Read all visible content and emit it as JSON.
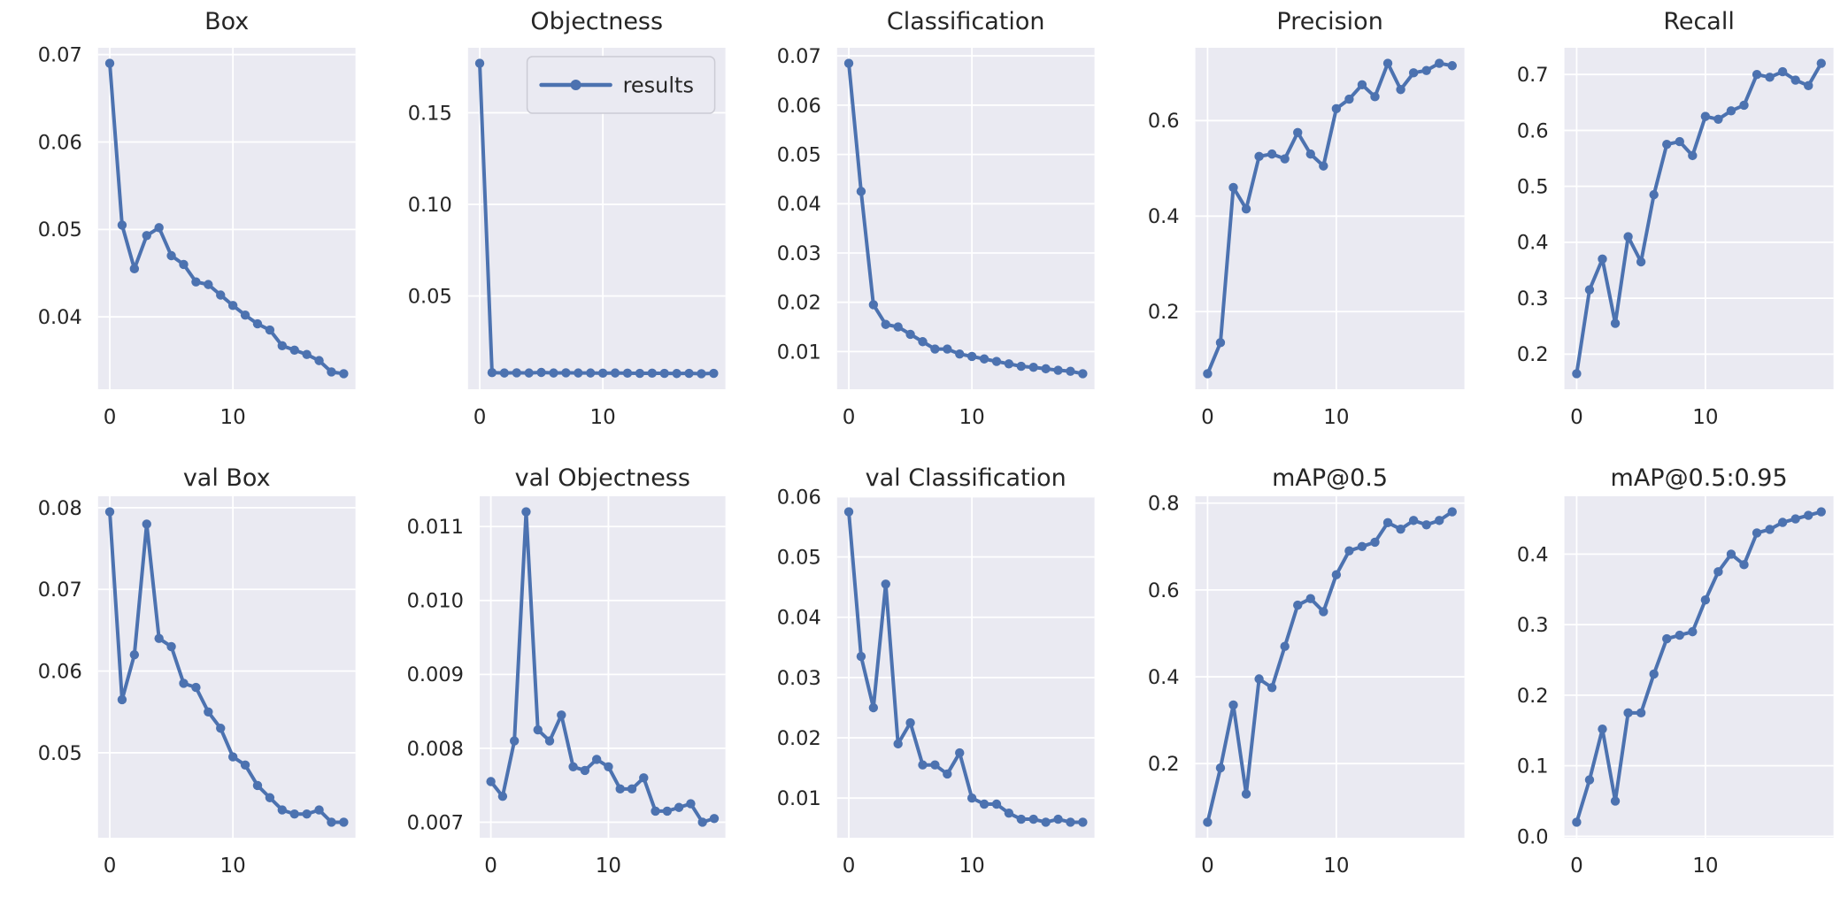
{
  "style": {
    "line_color": "#4C72B0",
    "axes_background": "#EAEAF2",
    "grid_color": "#FFFFFF",
    "text_color": "#262626",
    "legend_border": "#CBCBD4",
    "figure_background": "#FFFFFF"
  },
  "axis": {
    "xlim": [
      -0.95,
      19.95
    ],
    "grid": true,
    "y_pad_frac": 0.05,
    "marker": "dot-line"
  },
  "chart_data": [
    {
      "key": "box",
      "title": "Box",
      "type": "line",
      "x": [
        0,
        1,
        2,
        3,
        4,
        5,
        6,
        7,
        8,
        9,
        10,
        11,
        12,
        13,
        14,
        15,
        16,
        17,
        18,
        19
      ],
      "values": [
        0.069,
        0.0505,
        0.0455,
        0.0493,
        0.0502,
        0.047,
        0.046,
        0.044,
        0.0437,
        0.0425,
        0.0413,
        0.0402,
        0.0392,
        0.0385,
        0.0367,
        0.0362,
        0.0357,
        0.035,
        0.0337,
        0.0335
      ],
      "yticks": [
        0.04,
        0.05,
        0.06,
        0.07
      ],
      "ytick_labels": [
        "0.04",
        "0.05",
        "0.06",
        "0.07"
      ],
      "xticks": [
        0,
        10
      ],
      "xtick_labels": [
        "0",
        "10"
      ],
      "legend": null,
      "legend_loc": null
    },
    {
      "key": "objectness",
      "title": "Objectness",
      "type": "line",
      "x": [
        0,
        1,
        2,
        3,
        4,
        5,
        6,
        7,
        8,
        9,
        10,
        11,
        12,
        13,
        14,
        15,
        16,
        17,
        18,
        19
      ],
      "values": [
        0.177,
        0.0082,
        0.008,
        0.0081,
        0.008,
        0.0083,
        0.008,
        0.0081,
        0.008,
        0.008,
        0.0079,
        0.008,
        0.0079,
        0.0078,
        0.0079,
        0.0078,
        0.0077,
        0.0078,
        0.0076,
        0.0078
      ],
      "yticks": [
        0.05,
        0.1,
        0.15
      ],
      "ytick_labels": [
        "0.05",
        "0.10",
        "0.15"
      ],
      "xticks": [
        0,
        10
      ],
      "xtick_labels": [
        "0",
        "10"
      ],
      "legend": "results",
      "legend_loc": "upper right"
    },
    {
      "key": "classification",
      "title": "Classification",
      "type": "line",
      "x": [
        0,
        1,
        2,
        3,
        4,
        5,
        6,
        7,
        8,
        9,
        10,
        11,
        12,
        13,
        14,
        15,
        16,
        17,
        18,
        19
      ],
      "values": [
        0.0685,
        0.0425,
        0.0195,
        0.0155,
        0.015,
        0.0135,
        0.012,
        0.0105,
        0.0105,
        0.0095,
        0.009,
        0.0085,
        0.008,
        0.0075,
        0.007,
        0.0068,
        0.0065,
        0.0062,
        0.006,
        0.0055
      ],
      "yticks": [
        0.01,
        0.02,
        0.03,
        0.04,
        0.05,
        0.06,
        0.07
      ],
      "ytick_labels": [
        "0.01",
        "0.02",
        "0.03",
        "0.04",
        "0.05",
        "0.06",
        "0.07"
      ],
      "xticks": [
        0,
        10
      ],
      "xtick_labels": [
        "0",
        "10"
      ],
      "legend": null,
      "legend_loc": null
    },
    {
      "key": "precision",
      "title": "Precision",
      "type": "line",
      "x": [
        0,
        1,
        2,
        3,
        4,
        5,
        6,
        7,
        8,
        9,
        10,
        11,
        12,
        13,
        14,
        15,
        16,
        17,
        18,
        19
      ],
      "values": [
        0.07,
        0.135,
        0.46,
        0.415,
        0.525,
        0.53,
        0.52,
        0.575,
        0.53,
        0.505,
        0.625,
        0.645,
        0.675,
        0.65,
        0.72,
        0.665,
        0.7,
        0.705,
        0.72,
        0.715
      ],
      "yticks": [
        0.2,
        0.4,
        0.6
      ],
      "ytick_labels": [
        "0.2",
        "0.4",
        "0.6"
      ],
      "xticks": [
        0,
        10
      ],
      "xtick_labels": [
        "0",
        "10"
      ],
      "legend": null,
      "legend_loc": null
    },
    {
      "key": "recall",
      "title": "Recall",
      "type": "line",
      "x": [
        0,
        1,
        2,
        3,
        4,
        5,
        6,
        7,
        8,
        9,
        10,
        11,
        12,
        13,
        14,
        15,
        16,
        17,
        18,
        19
      ],
      "values": [
        0.165,
        0.315,
        0.37,
        0.255,
        0.41,
        0.365,
        0.485,
        0.575,
        0.58,
        0.555,
        0.625,
        0.62,
        0.635,
        0.645,
        0.7,
        0.695,
        0.705,
        0.69,
        0.68,
        0.72
      ],
      "yticks": [
        0.2,
        0.3,
        0.4,
        0.5,
        0.6,
        0.7
      ],
      "ytick_labels": [
        "0.2",
        "0.3",
        "0.4",
        "0.5",
        "0.6",
        "0.7"
      ],
      "xticks": [
        0,
        10
      ],
      "xtick_labels": [
        "0",
        "10"
      ],
      "legend": null,
      "legend_loc": null
    },
    {
      "key": "val_box",
      "title": "val Box",
      "type": "line",
      "x": [
        0,
        1,
        2,
        3,
        4,
        5,
        6,
        7,
        8,
        9,
        10,
        11,
        12,
        13,
        14,
        15,
        16,
        17,
        18,
        19
      ],
      "values": [
        0.0795,
        0.0565,
        0.062,
        0.078,
        0.064,
        0.063,
        0.0585,
        0.058,
        0.055,
        0.053,
        0.0495,
        0.0485,
        0.046,
        0.0445,
        0.043,
        0.0425,
        0.0425,
        0.043,
        0.0415,
        0.0415
      ],
      "yticks": [
        0.05,
        0.06,
        0.07,
        0.08
      ],
      "ytick_labels": [
        "0.05",
        "0.06",
        "0.07",
        "0.08"
      ],
      "xticks": [
        0,
        10
      ],
      "xtick_labels": [
        "0",
        "10"
      ],
      "legend": null,
      "legend_loc": null
    },
    {
      "key": "val_objectness",
      "title": "val Objectness",
      "type": "line",
      "x": [
        0,
        1,
        2,
        3,
        4,
        5,
        6,
        7,
        8,
        9,
        10,
        11,
        12,
        13,
        14,
        15,
        16,
        17,
        18,
        19
      ],
      "values": [
        0.00755,
        0.00735,
        0.0081,
        0.0112,
        0.00825,
        0.0081,
        0.00845,
        0.00775,
        0.0077,
        0.00785,
        0.00775,
        0.00745,
        0.00745,
        0.0076,
        0.00715,
        0.00715,
        0.0072,
        0.00725,
        0.007,
        0.00705
      ],
      "yticks": [
        0.007,
        0.008,
        0.009,
        0.01,
        0.011
      ],
      "ytick_labels": [
        "0.007",
        "0.008",
        "0.009",
        "0.010",
        "0.011"
      ],
      "xticks": [
        0,
        10
      ],
      "xtick_labels": [
        "0",
        "10"
      ],
      "legend": null,
      "legend_loc": null
    },
    {
      "key": "val_classification",
      "title": "val Classification",
      "type": "line",
      "x": [
        0,
        1,
        2,
        3,
        4,
        5,
        6,
        7,
        8,
        9,
        10,
        11,
        12,
        13,
        14,
        15,
        16,
        17,
        18,
        19
      ],
      "values": [
        0.0575,
        0.0335,
        0.025,
        0.0455,
        0.019,
        0.0225,
        0.0155,
        0.0155,
        0.014,
        0.0175,
        0.01,
        0.009,
        0.009,
        0.0075,
        0.0065,
        0.0065,
        0.006,
        0.0065,
        0.006,
        0.006
      ],
      "yticks": [
        0.01,
        0.02,
        0.03,
        0.04,
        0.05,
        0.06
      ],
      "ytick_labels": [
        "0.01",
        "0.02",
        "0.03",
        "0.04",
        "0.05",
        "0.06"
      ],
      "xticks": [
        0,
        10
      ],
      "xtick_labels": [
        "0",
        "10"
      ],
      "legend": null,
      "legend_loc": null
    },
    {
      "key": "map_05",
      "title": "mAP@0.5",
      "type": "line",
      "x": [
        0,
        1,
        2,
        3,
        4,
        5,
        6,
        7,
        8,
        9,
        10,
        11,
        12,
        13,
        14,
        15,
        16,
        17,
        18,
        19
      ],
      "values": [
        0.065,
        0.19,
        0.335,
        0.13,
        0.395,
        0.375,
        0.47,
        0.565,
        0.58,
        0.55,
        0.635,
        0.69,
        0.7,
        0.71,
        0.755,
        0.74,
        0.76,
        0.75,
        0.76,
        0.78
      ],
      "yticks": [
        0.2,
        0.4,
        0.6,
        0.8
      ],
      "ytick_labels": [
        "0.2",
        "0.4",
        "0.6",
        "0.8"
      ],
      "xticks": [
        0,
        10
      ],
      "xtick_labels": [
        "0",
        "10"
      ],
      "legend": null,
      "legend_loc": null
    },
    {
      "key": "map_05_095",
      "title": "mAP@0.5:0.95",
      "type": "line",
      "x": [
        0,
        1,
        2,
        3,
        4,
        5,
        6,
        7,
        8,
        9,
        10,
        11,
        12,
        13,
        14,
        15,
        16,
        17,
        18,
        19
      ],
      "values": [
        0.02,
        0.08,
        0.152,
        0.05,
        0.175,
        0.175,
        0.23,
        0.28,
        0.285,
        0.29,
        0.335,
        0.375,
        0.4,
        0.385,
        0.43,
        0.435,
        0.445,
        0.45,
        0.455,
        0.46
      ],
      "yticks": [
        0.0,
        0.1,
        0.2,
        0.3,
        0.4
      ],
      "ytick_labels": [
        "0.0",
        "0.1",
        "0.2",
        "0.3",
        "0.4"
      ],
      "xticks": [
        0,
        10
      ],
      "xtick_labels": [
        "0",
        "10"
      ],
      "legend": null,
      "legend_loc": null
    }
  ]
}
